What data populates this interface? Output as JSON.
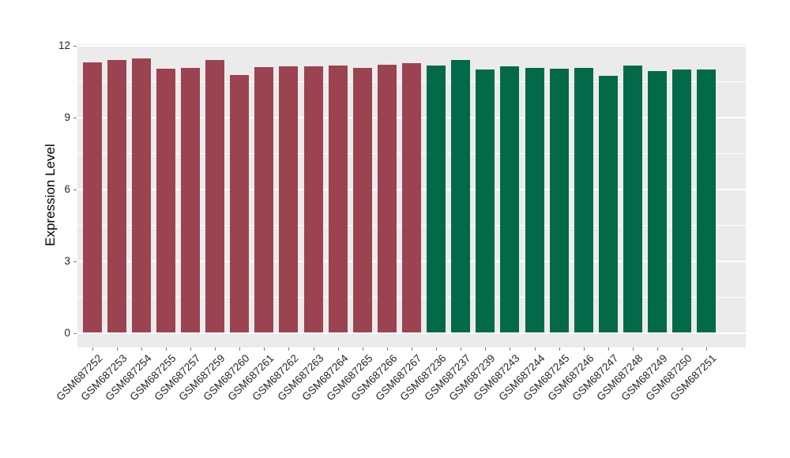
{
  "chart_data": {
    "type": "bar",
    "title": "",
    "xlabel": "",
    "ylabel": "Expression Level",
    "ylim": [
      0,
      12
    ],
    "yticks_major": [
      0,
      3,
      6,
      9,
      12
    ],
    "yticks_minor": [
      1.5,
      4.5,
      7.5,
      10.5
    ],
    "grid": true,
    "legend": "none",
    "panel_bg": "#EBEBEB",
    "grid_color": "#FFFFFF",
    "axis_text_color": "#262626",
    "tick_mark_color": "#7a7a7a",
    "group_colors": {
      "left_group": "#9C4351",
      "right_group": "#036A49"
    },
    "bars": [
      {
        "label": "GSM687252",
        "value": 11.3,
        "group": "left_group"
      },
      {
        "label": "GSM687253",
        "value": 11.4,
        "group": "left_group"
      },
      {
        "label": "GSM687254",
        "value": 11.46,
        "group": "left_group"
      },
      {
        "label": "GSM687255",
        "value": 11.03,
        "group": "left_group"
      },
      {
        "label": "GSM687257",
        "value": 11.05,
        "group": "left_group"
      },
      {
        "label": "GSM687259",
        "value": 11.39,
        "group": "left_group"
      },
      {
        "label": "GSM687260",
        "value": 10.76,
        "group": "left_group"
      },
      {
        "label": "GSM687261",
        "value": 11.1,
        "group": "left_group"
      },
      {
        "label": "GSM687262",
        "value": 11.12,
        "group": "left_group"
      },
      {
        "label": "GSM687263",
        "value": 11.12,
        "group": "left_group"
      },
      {
        "label": "GSM687264",
        "value": 11.16,
        "group": "left_group"
      },
      {
        "label": "GSM687265",
        "value": 11.06,
        "group": "left_group"
      },
      {
        "label": "GSM687266",
        "value": 11.2,
        "group": "left_group"
      },
      {
        "label": "GSM687267",
        "value": 11.26,
        "group": "left_group"
      },
      {
        "label": "GSM687236",
        "value": 11.15,
        "group": "right_group"
      },
      {
        "label": "GSM687237",
        "value": 11.39,
        "group": "right_group"
      },
      {
        "label": "GSM687239",
        "value": 11.0,
        "group": "right_group"
      },
      {
        "label": "GSM687243",
        "value": 11.12,
        "group": "right_group"
      },
      {
        "label": "GSM687244",
        "value": 11.06,
        "group": "right_group"
      },
      {
        "label": "GSM687245",
        "value": 11.03,
        "group": "right_group"
      },
      {
        "label": "GSM687246",
        "value": 11.06,
        "group": "right_group"
      },
      {
        "label": "GSM687247",
        "value": 10.73,
        "group": "right_group"
      },
      {
        "label": "GSM687248",
        "value": 11.15,
        "group": "right_group"
      },
      {
        "label": "GSM687249",
        "value": 10.93,
        "group": "right_group"
      },
      {
        "label": "GSM687250",
        "value": 11.0,
        "group": "right_group"
      },
      {
        "label": "GSM687251",
        "value": 11.0,
        "group": "right_group"
      }
    ]
  }
}
